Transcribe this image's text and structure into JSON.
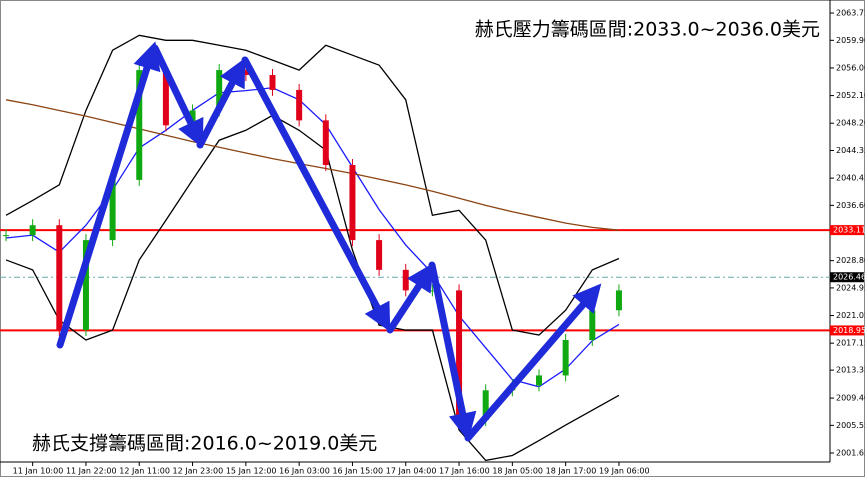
{
  "chart_data": {
    "type": "candlestick",
    "annotations": [
      "赫氏壓力籌碼區間:2033.0~2036.0美元",
      "赫氏支撐籌碼區間:2016.0~2019.0美元"
    ],
    "categories": [
      null,
      "11 Jan 10:00",
      null,
      "11 Jan 22:00",
      null,
      "12 Jan 11:00",
      null,
      "12 Jan 23:00",
      null,
      "15 Jan 12:00",
      null,
      "16 Jan 03:00",
      null,
      "16 Jan 15:00",
      null,
      "17 Jan 04:00",
      null,
      "17 Jan 16:00",
      null,
      "18 Jan 05:00",
      null,
      "18 Jan 17:00",
      null,
      "19 Jan 06:00"
    ],
    "series": [
      {
        "type": "candlestick",
        "up_color": "#11a911",
        "down_color": "#e0001a",
        "values": [
          2032.4,
          2033.8,
          2019.0,
          2031.7,
          2040.2,
          2055.7,
          2047.9,
          2050.0,
          2055.7,
          2055.0,
          2052.9,
          2048.6,
          2042.3,
          2031.7,
          2027.5,
          2024.6,
          2024.6,
          2006.3,
          2010.5,
          2011.2,
          2012.6,
          2017.6,
          2021.8,
          2024.6
        ]
      },
      {
        "type": "line",
        "color": "#000000",
        "values": [
          2035.2,
          2037.3,
          2039.5,
          2050.0,
          2058.5,
          2060.6,
          2059.9,
          2059.9,
          2059.2,
          2058.5,
          2057.1,
          2055.7,
          2059.2,
          2057.8,
          2056.4,
          2051.5,
          2035.2,
          2035.9,
          2031.7,
          2019.0,
          2018.3,
          2021.8,
          2027.5,
          2029.1
        ]
      },
      {
        "type": "line",
        "color": "#000000",
        "values": [
          2028.9,
          2027.5,
          2020.4,
          2017.6,
          2019.0,
          2028.9,
          2034.5,
          2040.2,
          2045.8,
          2047.2,
          2049.3,
          2047.2,
          2044.4,
          2030.3,
          2019.7,
          2019.0,
          2019.0,
          2004.9,
          2000.6,
          2001.3,
          2003.4,
          2005.6,
          2007.7,
          2009.8
        ]
      },
      {
        "type": "line",
        "color": "#1a1aff",
        "values": [
          2032.0,
          2032.4,
          2030.0,
          2033.8,
          2038.8,
          2044.7,
          2047.2,
          2050.0,
          2052.5,
          2052.8,
          2053.2,
          2051.5,
          2048.0,
          2042.0,
          2036.0,
          2031.0,
          2027.0,
          2021.0,
          2016.5,
          2012.0,
          2011.0,
          2013.5,
          2017.5,
          2019.8
        ]
      },
      {
        "type": "line",
        "color": "#8b4513",
        "values": [
          2051.5,
          2050.8,
          2050.0,
          2049.2,
          2048.3,
          2047.4,
          2046.5,
          2045.6,
          2044.8,
          2044.0,
          2043.2,
          2042.5,
          2041.8,
          2041.1,
          2040.3,
          2039.5,
          2038.6,
          2037.6,
          2036.6,
          2035.7,
          2034.9,
          2034.1,
          2033.5,
          2033.1
        ]
      }
    ],
    "levels": [
      {
        "value": 2033.11,
        "color": "#ff0000"
      },
      {
        "value": 2018.95,
        "color": "#ff0000"
      },
      {
        "value": 2026.46,
        "color": "#000000"
      }
    ],
    "ylim": [
      2000.38,
      2065.59
    ],
    "yticks": [
      {
        "value": 2001.65,
        "label": "2001.65"
      },
      {
        "value": 2005.55,
        "label": "2005.55"
      },
      {
        "value": 2009.4,
        "label": "2009.40"
      },
      {
        "value": 2013.35,
        "label": "2013.35"
      },
      {
        "value": 2017.15,
        "label": "2017.15"
      },
      {
        "value": 2021.05,
        "label": "2021.05"
      },
      {
        "value": 2024.95,
        "label": "2024.95"
      },
      {
        "value": 2028.8,
        "label": "2028.80"
      },
      {
        "value": 2036.6,
        "label": "2036.60"
      },
      {
        "value": 2040.45,
        "label": "2040.45"
      },
      {
        "value": 2044.35,
        "label": "2044.35"
      },
      {
        "value": 2048.2,
        "label": "2048.20"
      },
      {
        "value": 2052.1,
        "label": "2052.10"
      },
      {
        "value": 2056.0,
        "label": "2056.00"
      },
      {
        "value": 2059.9,
        "label": "2059.90"
      },
      {
        "value": 2063.75,
        "label": "2063.75"
      }
    ],
    "grid": false
  }
}
